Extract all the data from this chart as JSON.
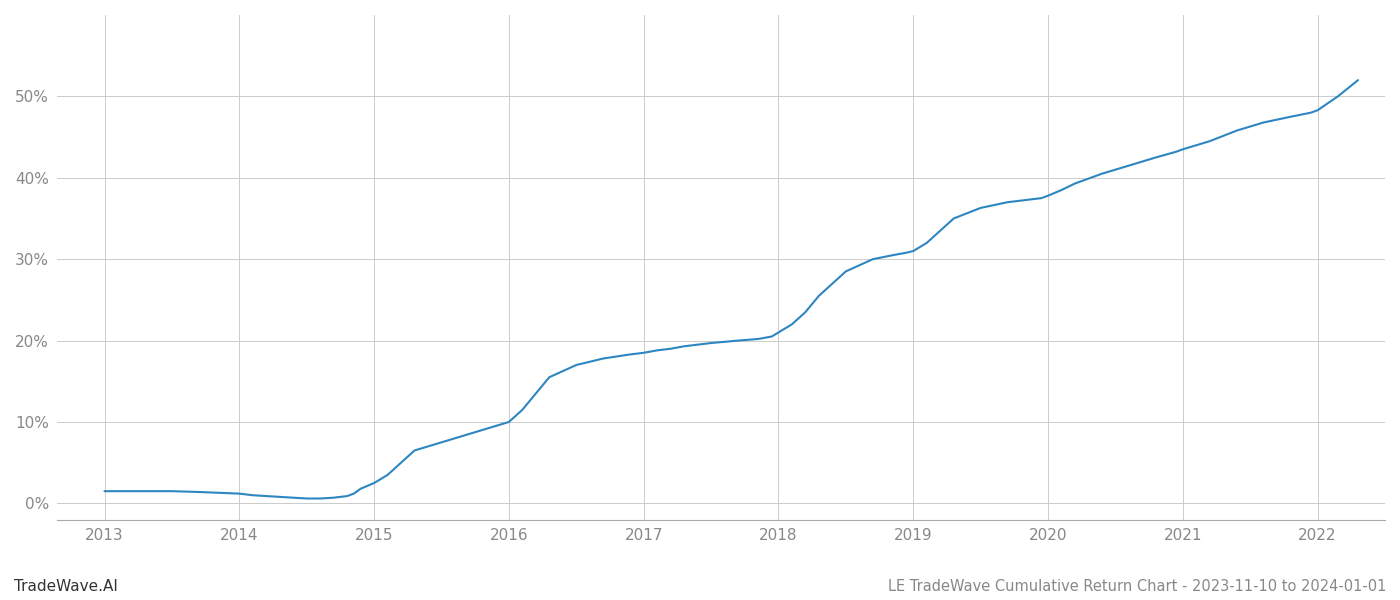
{
  "title": "LE TradeWave Cumulative Return Chart - 2023-11-10 to 2024-01-01",
  "watermark": "TradeWave.AI",
  "line_color": "#2e86c1",
  "background_color": "#ffffff",
  "grid_color": "#cccccc",
  "x_years": [
    2013,
    2014,
    2015,
    2016,
    2017,
    2018,
    2019,
    2020,
    2021,
    2022
  ],
  "x_data": [
    2013.0,
    2013.15,
    2013.3,
    2013.5,
    2013.7,
    2013.85,
    2014.0,
    2014.1,
    2014.2,
    2014.3,
    2014.4,
    2014.5,
    2014.6,
    2014.7,
    2014.8,
    2014.85,
    2014.9,
    2015.0,
    2015.1,
    2015.2,
    2015.3,
    2015.5,
    2015.7,
    2015.9,
    2016.0,
    2016.1,
    2016.2,
    2016.3,
    2016.5,
    2016.7,
    2016.9,
    2017.0,
    2017.1,
    2017.2,
    2017.3,
    2017.5,
    2017.7,
    2017.85,
    2017.95,
    2018.0,
    2018.1,
    2018.2,
    2018.3,
    2018.5,
    2018.7,
    2018.85,
    2018.95,
    2019.0,
    2019.1,
    2019.2,
    2019.3,
    2019.5,
    2019.7,
    2019.85,
    2019.95,
    2020.0,
    2020.1,
    2020.2,
    2020.4,
    2020.6,
    2020.8,
    2020.95,
    2021.0,
    2021.2,
    2021.4,
    2021.6,
    2021.8,
    2021.95,
    2022.0,
    2022.15,
    2022.3
  ],
  "y_data": [
    0.015,
    0.015,
    0.015,
    0.015,
    0.014,
    0.013,
    0.012,
    0.01,
    0.009,
    0.008,
    0.007,
    0.006,
    0.006,
    0.007,
    0.009,
    0.012,
    0.018,
    0.025,
    0.035,
    0.05,
    0.065,
    0.075,
    0.085,
    0.095,
    0.1,
    0.115,
    0.135,
    0.155,
    0.17,
    0.178,
    0.183,
    0.185,
    0.188,
    0.19,
    0.193,
    0.197,
    0.2,
    0.202,
    0.205,
    0.21,
    0.22,
    0.235,
    0.255,
    0.285,
    0.3,
    0.305,
    0.308,
    0.31,
    0.32,
    0.335,
    0.35,
    0.363,
    0.37,
    0.373,
    0.375,
    0.378,
    0.385,
    0.393,
    0.405,
    0.415,
    0.425,
    0.432,
    0.435,
    0.445,
    0.458,
    0.468,
    0.475,
    0.48,
    0.483,
    0.5,
    0.52
  ],
  "ylim": [
    -0.02,
    0.6
  ],
  "yticks": [
    0.0,
    0.1,
    0.2,
    0.3,
    0.4,
    0.5
  ],
  "ytick_labels": [
    "0%",
    "10%",
    "20%",
    "30%",
    "40%",
    "50%"
  ],
  "xlim": [
    2012.65,
    2022.5
  ],
  "line_width": 1.5,
  "font_color": "#888888",
  "title_font_size": 10.5,
  "tick_font_size": 11,
  "watermark_font_size": 11
}
